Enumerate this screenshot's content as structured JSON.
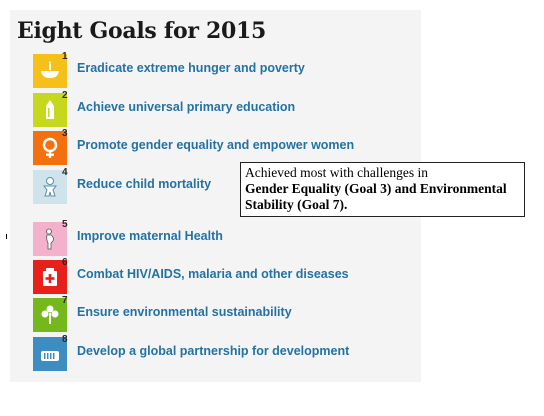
{
  "title": "Eight Goals for 2015",
  "goals": [
    {
      "number": "1",
      "label": "Eradicate extreme hunger and poverty",
      "color": "#f6c01b",
      "icon": "bowl-icon"
    },
    {
      "number": "2",
      "label": "Achieve universal primary education",
      "color": "#c6d81d",
      "icon": "pencil-icon"
    },
    {
      "number": "3",
      "label": "Promote gender equality and empower women",
      "color": "#f3700f",
      "icon": "female-symbol-icon"
    },
    {
      "number": "4",
      "label": "Reduce child mortality",
      "color": "#cfe3ec",
      "icon": "baby-icon"
    },
    {
      "number": "5",
      "label": "Improve maternal Health",
      "color": "#f4b1cb",
      "icon": "pregnant-woman-icon"
    },
    {
      "number": "6",
      "label": "Combat HIV/AIDS, malaria and other diseases",
      "color": "#e8201b",
      "icon": "medicine-kit-icon"
    },
    {
      "number": "7",
      "label": "Ensure environmental sustainability",
      "color": "#74b81c",
      "icon": "tree-icon"
    },
    {
      "number": "8",
      "label": "Develop a global partnership for development",
      "color": "#3e8dc2",
      "icon": "handshake-icon"
    }
  ],
  "callout": {
    "line1": "Achieved most with challenges in",
    "line2": "Gender Equality (Goal 3) and Environmental",
    "line3": "Stability (Goal 7)."
  }
}
